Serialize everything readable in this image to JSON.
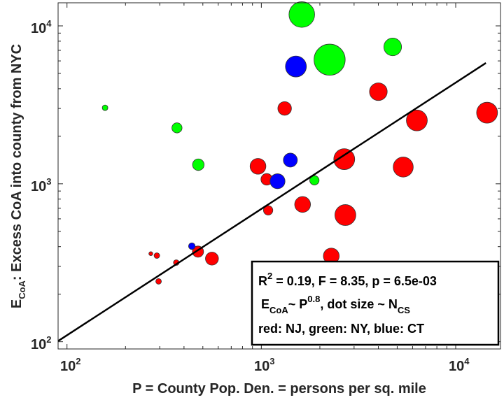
{
  "chart_data": {
    "type": "scatter",
    "xscale": "log",
    "yscale": "log",
    "xlim": [
      90,
      17000
    ],
    "ylim": [
      90,
      14000
    ],
    "xticks": [
      100,
      1000,
      10000
    ],
    "yticks": [
      100,
      1000,
      10000
    ],
    "xtick_labels": [
      {
        "base": "10",
        "exp": "2"
      },
      {
        "base": "10",
        "exp": "3"
      },
      {
        "base": "10",
        "exp": "4"
      }
    ],
    "ytick_labels": [
      {
        "base": "10",
        "exp": "2"
      },
      {
        "base": "10",
        "exp": "3"
      },
      {
        "base": "10",
        "exp": "4"
      }
    ],
    "xlabel": "P = County Pop. Den. = persons per sq. mile",
    "ylabel": {
      "main": "E",
      "sub": "CoA",
      "rest": ": Excess CoA into county from NYC"
    },
    "grid": false,
    "colors": {
      "NJ": "#ff0000",
      "NY": "#00ff00",
      "CT": "#0000ff"
    },
    "size_note": "relative N_CS (dot area)",
    "points": [
      {
        "x": 157,
        "y": 3030,
        "state": "NY",
        "size": 1
      },
      {
        "x": 368,
        "y": 2260,
        "state": "NY",
        "size": 3.3
      },
      {
        "x": 1615,
        "y": 11800,
        "state": "NY",
        "size": 21
      },
      {
        "x": 2245,
        "y": 6110,
        "state": "NY",
        "size": 31
      },
      {
        "x": 1506,
        "y": 5530,
        "state": "CT",
        "size": 14
      },
      {
        "x": 4740,
        "y": 7360,
        "state": "NY",
        "size": 10
      },
      {
        "x": 4000,
        "y": 3830,
        "state": "NJ",
        "size": 10
      },
      {
        "x": 1318,
        "y": 3000,
        "state": "NJ",
        "size": 5.9
      },
      {
        "x": 6310,
        "y": 2520,
        "state": "NJ",
        "size": 14
      },
      {
        "x": 14500,
        "y": 2820,
        "state": "NJ",
        "size": 14
      },
      {
        "x": 5370,
        "y": 1277,
        "state": "NJ",
        "size": 12.8
      },
      {
        "x": 2670,
        "y": 1432,
        "state": "NJ",
        "size": 14
      },
      {
        "x": 1410,
        "y": 1413,
        "state": "CT",
        "size": 6.25
      },
      {
        "x": 961,
        "y": 1291,
        "state": "NJ",
        "size": 8
      },
      {
        "x": 1066,
        "y": 1067,
        "state": "NJ",
        "size": 4.3
      },
      {
        "x": 1211,
        "y": 1038,
        "state": "CT",
        "size": 7.2
      },
      {
        "x": 1875,
        "y": 1052,
        "state": "NY",
        "size": 2.8
      },
      {
        "x": 1630,
        "y": 740,
        "state": "NJ",
        "size": 8
      },
      {
        "x": 2705,
        "y": 634,
        "state": "NJ",
        "size": 14
      },
      {
        "x": 1084,
        "y": 679,
        "state": "NJ",
        "size": 2.8
      },
      {
        "x": 474,
        "y": 1321,
        "state": "NY",
        "size": 4.3
      },
      {
        "x": 557,
        "y": 336,
        "state": "NJ",
        "size": 5.4
      },
      {
        "x": 472,
        "y": 372,
        "state": "NJ",
        "size": 4
      },
      {
        "x": 439,
        "y": 403,
        "state": "CT",
        "size": 1.4
      },
      {
        "x": 290,
        "y": 351,
        "state": "NJ",
        "size": 1
      },
      {
        "x": 270,
        "y": 361,
        "state": "NJ",
        "size": 0.5
      },
      {
        "x": 365,
        "y": 317,
        "state": "NJ",
        "size": 1
      },
      {
        "x": 296,
        "y": 241,
        "state": "NJ",
        "size": 1
      },
      {
        "x": 2290,
        "y": 349,
        "state": "NJ",
        "size": 8
      }
    ],
    "fit_line": {
      "x": [
        90,
        14300
      ],
      "y": [
        101,
        5820
      ],
      "exponent": 0.8
    },
    "annotation": {
      "line1": {
        "a": "R",
        "a_sup": "2",
        "b": " = 0.19, F = 8.35, p = 6.5e-03"
      },
      "line2": {
        "a": "E",
        "a_sub": "CoA",
        "b": "~ P",
        "b_sup": "0.8",
        "c": ", dot size ~ N",
        "c_sub": "CS"
      },
      "line3": "red: NJ, green: NY, blue: CT"
    }
  }
}
